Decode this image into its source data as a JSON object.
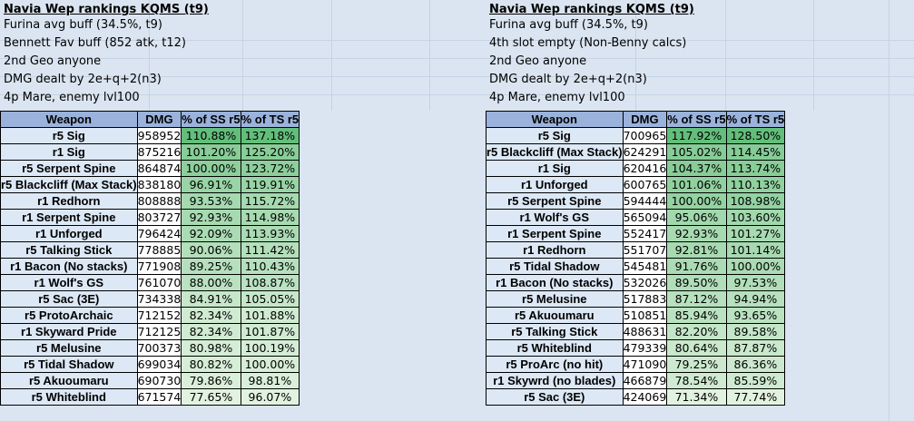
{
  "left": {
    "notes": [
      "Navia Wep rankings KQMS (t9)",
      "Furina avg buff (34.5%, t9)",
      "Bennett Fav buff (852 atk, t12)",
      "2nd Geo anyone",
      "DMG dealt by 2e+q+2(n3)",
      "4p Mare, enemy lvl100"
    ],
    "headers": [
      "Weapon",
      "DMG",
      "% of SS r5",
      "% of TS r5"
    ],
    "rows": [
      {
        "weapon": "r5 Sig",
        "dmg": "958952",
        "ss": "110.88%",
        "ts": "137.18%"
      },
      {
        "weapon": "r1 Sig",
        "dmg": "875216",
        "ss": "101.20%",
        "ts": "125.20%"
      },
      {
        "weapon": "r5 Serpent Spine",
        "dmg": "864874",
        "ss": "100.00%",
        "ts": "123.72%"
      },
      {
        "weapon": "r5 Blackcliff (Max Stack)",
        "dmg": "838180",
        "ss": "96.91%",
        "ts": "119.91%"
      },
      {
        "weapon": "r1 Redhorn",
        "dmg": "808888",
        "ss": "93.53%",
        "ts": "115.72%"
      },
      {
        "weapon": "r1 Serpent Spine",
        "dmg": "803727",
        "ss": "92.93%",
        "ts": "114.98%"
      },
      {
        "weapon": "r1 Unforged",
        "dmg": "796424",
        "ss": "92.09%",
        "ts": "113.93%"
      },
      {
        "weapon": "r5 Talking Stick",
        "dmg": "778885",
        "ss": "90.06%",
        "ts": "111.42%"
      },
      {
        "weapon": "r1 Bacon (No stacks)",
        "dmg": "771908",
        "ss": "89.25%",
        "ts": "110.43%"
      },
      {
        "weapon": "r1 Wolf's GS",
        "dmg": "761070",
        "ss": "88.00%",
        "ts": "108.87%"
      },
      {
        "weapon": "r5 Sac (3E)",
        "dmg": "734338",
        "ss": "84.91%",
        "ts": "105.05%"
      },
      {
        "weapon": "r5 ProtoArchaic",
        "dmg": "712152",
        "ss": "82.34%",
        "ts": "101.88%"
      },
      {
        "weapon": "r1 Skyward Pride",
        "dmg": "712125",
        "ss": "82.34%",
        "ts": "101.87%"
      },
      {
        "weapon": "r5 Melusine",
        "dmg": "700373",
        "ss": "80.98%",
        "ts": "100.19%"
      },
      {
        "weapon": "r5 Tidal Shadow",
        "dmg": "699034",
        "ss": "80.82%",
        "ts": "100.00%"
      },
      {
        "weapon": "r5 Akuoumaru",
        "dmg": "690730",
        "ss": "79.86%",
        "ts": "98.81%"
      },
      {
        "weapon": "r5 Whiteblind",
        "dmg": "671574",
        "ss": "77.65%",
        "ts": "96.07%"
      }
    ]
  },
  "right": {
    "notes": [
      "Navia Wep rankings KQMS (t9)",
      "Furina avg buff (34.5%, t9)",
      "4th slot empty (Non-Benny calcs)",
      "2nd Geo anyone",
      "DMG dealt by 2e+q+2(n3)",
      "4p Mare, enemy lvl100"
    ],
    "headers": [
      "Weapon",
      "DMG",
      "% of SS r5",
      "% of TS r5"
    ],
    "rows": [
      {
        "weapon": "r5 Sig",
        "dmg": "700965",
        "ss": "117.92%",
        "ts": "128.50%"
      },
      {
        "weapon": "r5 Blackcliff (Max Stack)",
        "dmg": "624291",
        "ss": "105.02%",
        "ts": "114.45%"
      },
      {
        "weapon": "r1 Sig",
        "dmg": "620416",
        "ss": "104.37%",
        "ts": "113.74%"
      },
      {
        "weapon": "r1 Unforged",
        "dmg": "600765",
        "ss": "101.06%",
        "ts": "110.13%"
      },
      {
        "weapon": "r5 Serpent Spine",
        "dmg": "594444",
        "ss": "100.00%",
        "ts": "108.98%"
      },
      {
        "weapon": "r1 Wolf's GS",
        "dmg": "565094",
        "ss": "95.06%",
        "ts": "103.60%"
      },
      {
        "weapon": "r1 Serpent Spine",
        "dmg": "552417",
        "ss": "92.93%",
        "ts": "101.27%"
      },
      {
        "weapon": "r1 Redhorn",
        "dmg": "551707",
        "ss": "92.81%",
        "ts": "101.14%"
      },
      {
        "weapon": "r5 Tidal Shadow",
        "dmg": "545481",
        "ss": "91.76%",
        "ts": "100.00%"
      },
      {
        "weapon": "r1 Bacon (No stacks)",
        "dmg": "532026",
        "ss": "89.50%",
        "ts": "97.53%"
      },
      {
        "weapon": "r5 Melusine",
        "dmg": "517883",
        "ss": "87.12%",
        "ts": "94.94%"
      },
      {
        "weapon": "r5 Akuoumaru",
        "dmg": "510851",
        "ss": "85.94%",
        "ts": "93.65%"
      },
      {
        "weapon": "r5 Talking Stick",
        "dmg": "488631",
        "ss": "82.20%",
        "ts": "89.58%"
      },
      {
        "weapon": "r5 Whiteblind",
        "dmg": "479339",
        "ss": "80.64%",
        "ts": "87.87%"
      },
      {
        "weapon": "r5 ProArc (no hit)",
        "dmg": "471090",
        "ss": "79.25%",
        "ts": "86.36%"
      },
      {
        "weapon": "r1 Skywrd (no blades)",
        "dmg": "466879",
        "ss": "78.54%",
        "ts": "85.59%"
      },
      {
        "weapon": "r5 Sac (3E)",
        "dmg": "424069",
        "ss": "71.34%",
        "ts": "77.74%"
      }
    ]
  },
  "colors": {
    "sheet_bg": "#dbe5f1",
    "header_bg": "#9bb3dc",
    "weapon_bg": "#dde8f6",
    "scale_high": "#63be7b",
    "scale_low": "#e2f2e0"
  }
}
